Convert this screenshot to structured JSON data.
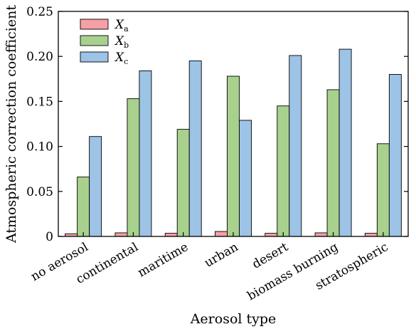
{
  "chart_data": {
    "type": "bar",
    "xlabel": "Aerosol type",
    "ylabel": "Atmospheric correction coefficient",
    "ylim": [
      0,
      0.25
    ],
    "yticks": [
      "0",
      "0.05",
      "0.10",
      "0.15",
      "0.20",
      "0.25"
    ],
    "grid": false,
    "legend_position": "top-left",
    "categories": [
      "no aerosol",
      "continental",
      "maritime",
      "urban",
      "desert",
      "biomass burning",
      "stratospheric"
    ],
    "series": [
      {
        "name": "X",
        "sub": "a",
        "color": "#f4a0a6",
        "values": [
          0.003,
          0.004,
          0.0035,
          0.0055,
          0.0035,
          0.004,
          0.0035
        ]
      },
      {
        "name": "X",
        "sub": "b",
        "color": "#a9d18e",
        "values": [
          0.066,
          0.153,
          0.119,
          0.178,
          0.145,
          0.163,
          0.103
        ]
      },
      {
        "name": "X",
        "sub": "c",
        "color": "#9dc3e6",
        "values": [
          0.111,
          0.184,
          0.195,
          0.129,
          0.201,
          0.208,
          0.18
        ]
      }
    ]
  }
}
